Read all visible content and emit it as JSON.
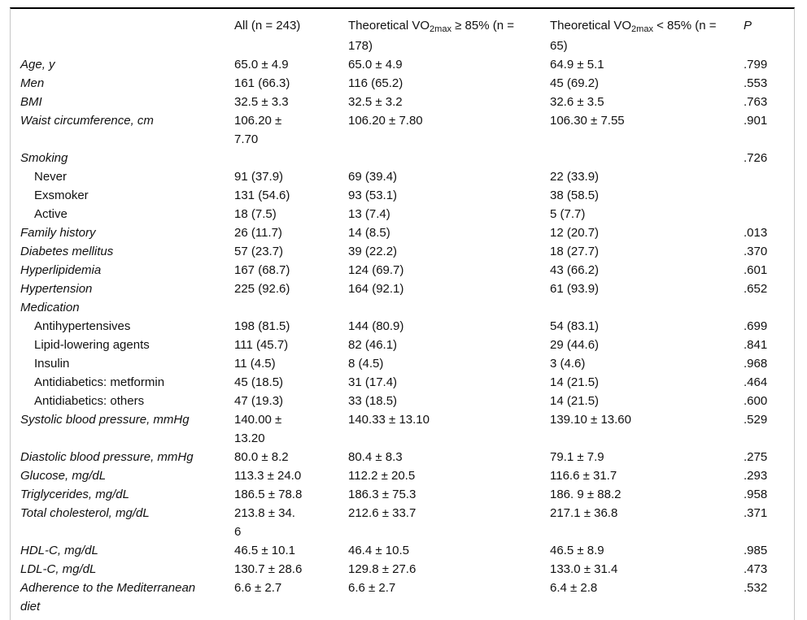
{
  "table": {
    "header": {
      "label_col": "",
      "all_col": "All (n = 243)",
      "ge_col": {
        "prefix": "Theoretical VO",
        "sub": "2max",
        "suffix": " ≥ 85% (n =",
        "line2": "178)"
      },
      "lt_col": {
        "prefix": "Theoretical VO",
        "sub": "2max",
        "suffix": " < 85% (n =",
        "line2": "65)"
      },
      "p_col": "P"
    },
    "rows": [
      {
        "label": "Age, y",
        "indent": false,
        "all": "65.0 ± 4.9",
        "ge": "65.0 ± 4.9",
        "lt": "64.9 ± 5.1",
        "p": ".799"
      },
      {
        "label": "Men",
        "indent": false,
        "all": "161 (66.3)",
        "ge": "116 (65.2)",
        "lt": "45 (69.2)",
        "p": ".553"
      },
      {
        "label": "BMI",
        "indent": false,
        "all": "32.5 ± 3.3",
        "ge": "32.5 ± 3.2",
        "lt": "32.6 ± 3.5",
        "p": ".763"
      },
      {
        "label": "Waist circumference, cm",
        "indent": false,
        "all": "106.20 ±\n7.70",
        "ge": "106.20 ± 7.80",
        "lt": "106.30 ± 7.55",
        "p": ".901"
      },
      {
        "label": "Smoking",
        "indent": false,
        "all": "",
        "ge": "",
        "lt": "",
        "p": ".726"
      },
      {
        "label": "Never",
        "indent": true,
        "all": "91 (37.9)",
        "ge": "69 (39.4)",
        "lt": "22 (33.9)",
        "p": ""
      },
      {
        "label": "Exsmoker",
        "indent": true,
        "all": "131 (54.6)",
        "ge": "93 (53.1)",
        "lt": "38 (58.5)",
        "p": ""
      },
      {
        "label": "Active",
        "indent": true,
        "all": "18 (7.5)",
        "ge": "13 (7.4)",
        "lt": "5 (7.7)",
        "p": ""
      },
      {
        "label": "Family history",
        "indent": false,
        "all": "26 (11.7)",
        "ge": "14 (8.5)",
        "lt": "12 (20.7)",
        "p": ".013"
      },
      {
        "label": "Diabetes mellitus",
        "indent": false,
        "all": "57 (23.7)",
        "ge": "39 (22.2)",
        "lt": "18 (27.7)",
        "p": ".370"
      },
      {
        "label": "Hyperlipidemia",
        "indent": false,
        "all": "167 (68.7)",
        "ge": "124 (69.7)",
        "lt": "43 (66.2)",
        "p": ".601"
      },
      {
        "label": "Hypertension",
        "indent": false,
        "all": "225 (92.6)",
        "ge": "164 (92.1)",
        "lt": "61 (93.9)",
        "p": ".652"
      },
      {
        "label": "Medication",
        "indent": false,
        "all": "",
        "ge": "",
        "lt": "",
        "p": ""
      },
      {
        "label": "Antihypertensives",
        "indent": true,
        "all": "198 (81.5)",
        "ge": "144 (80.9)",
        "lt": "54 (83.1)",
        "p": ".699"
      },
      {
        "label": "Lipid-lowering agents",
        "indent": true,
        "all": "111 (45.7)",
        "ge": "82 (46.1)",
        "lt": "29 (44.6)",
        "p": ".841"
      },
      {
        "label": "Insulin",
        "indent": true,
        "all": "11 (4.5)",
        "ge": "8 (4.5)",
        "lt": "3 (4.6)",
        "p": ".968"
      },
      {
        "label": "Antidiabetics: metformin",
        "indent": true,
        "all": "45 (18.5)",
        "ge": "31 (17.4)",
        "lt": "14 (21.5)",
        "p": ".464"
      },
      {
        "label": "Antidiabetics: others",
        "indent": true,
        "all": "47 (19.3)",
        "ge": "33 (18.5)",
        "lt": "14 (21.5)",
        "p": ".600"
      },
      {
        "label": "Systolic blood pressure, mmHg",
        "indent": false,
        "all": "140.00 ±\n13.20",
        "ge": "140.33 ± 13.10",
        "lt": "139.10 ± 13.60",
        "p": ".529"
      },
      {
        "label": "Diastolic blood pressure, mmHg",
        "indent": false,
        "all": "80.0 ± 8.2",
        "ge": "80.4 ± 8.3",
        "lt": "79.1 ± 7.9",
        "p": ".275"
      },
      {
        "label": "Glucose, mg/dL",
        "indent": false,
        "all": "113.3 ± 24.0",
        "ge": "112.2 ± 20.5",
        "lt": "116.6 ± 31.7",
        "p": ".293"
      },
      {
        "label": "Triglycerides, mg/dL",
        "indent": false,
        "all": "186.5 ± 78.8",
        "ge": "186.3 ± 75.3",
        "lt": "186. 9 ± 88.2",
        "p": ".958"
      },
      {
        "label": "Total cholesterol, mg/dL",
        "indent": false,
        "all": "213.8 ± 34.\n6",
        "ge": "212.6 ± 33.7",
        "lt": "217.1 ± 36.8",
        "p": ".371"
      },
      {
        "label": "HDL-C, mg/dL",
        "indent": false,
        "all": "46.5 ± 10.1",
        "ge": "46.4 ± 10.5",
        "lt": "46.5 ± 8.9",
        "p": ".985"
      },
      {
        "label": "LDL-C, mg/dL",
        "indent": false,
        "all": "130.7 ± 28.6",
        "ge": "129.8 ± 27.6",
        "lt": "133.0 ± 31.4",
        "p": ".473"
      },
      {
        "label": "Adherence to the Mediterranean\ndiet",
        "indent": false,
        "all": "6.6 ± 2.7",
        "ge": "6.6 ± 2.7",
        "lt": "6.4 ± 2.8",
        "p": ".532"
      }
    ]
  }
}
